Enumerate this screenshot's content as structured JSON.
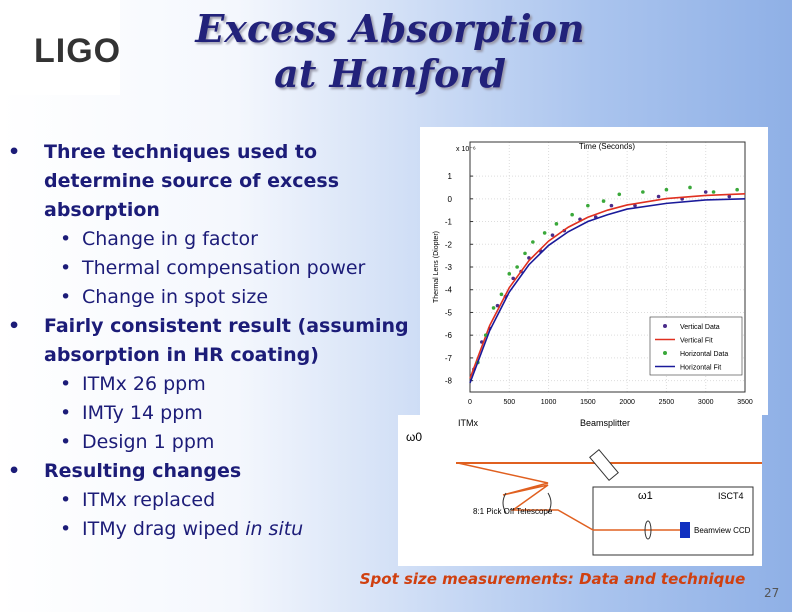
{
  "logo": "LIGO",
  "header": {
    "title": "Excess Absorption at Hanford"
  },
  "bullets": [
    {
      "level": 1,
      "text": "Three techniques used to determine source of excess absorption"
    },
    {
      "level": 2,
      "text": "Change in g factor"
    },
    {
      "level": 2,
      "text": "Thermal compensation power"
    },
    {
      "level": 2,
      "text": "Change in spot size"
    },
    {
      "level": 1,
      "text": "Fairly consistent result (assuming absorption in HR coating)"
    },
    {
      "level": 2,
      "text": "ITMx 26 ppm"
    },
    {
      "level": 2,
      "text": "IMTy 14 ppm"
    },
    {
      "level": 2,
      "text": "Design 1 ppm"
    },
    {
      "level": 1,
      "text": "Resulting changes"
    },
    {
      "level": 2,
      "text": "ITMx replaced"
    },
    {
      "level": 2,
      "text": "ITMy drag wiped",
      "emphasis": "in situ"
    }
  ],
  "chart_data": {
    "type": "scatter",
    "title": "Time (Seconds)",
    "y_label": "Thermal Lens (Diopter)",
    "y_scale_label": "x 10⁻⁶",
    "xlim": [
      0,
      3500
    ],
    "xticks": [
      0,
      500,
      1000,
      1500,
      2000,
      2500,
      3000,
      3500
    ],
    "ylim": [
      -8.5,
      2.5
    ],
    "yticks": [
      1,
      0,
      -1,
      -2,
      -3,
      -4,
      -5,
      -6,
      -7,
      -8
    ],
    "grid": true,
    "legend": "lower right",
    "series": [
      {
        "name": "Vertical Data",
        "color": "#4a2c8a",
        "style": "points",
        "x": [
          50,
          150,
          250,
          350,
          450,
          550,
          650,
          750,
          900,
          1050,
          1200,
          1400,
          1600,
          1800,
          2100,
          2400,
          2700,
          3000,
          3300
        ],
        "values": [
          -7.5,
          -6.3,
          -5.7,
          -4.7,
          -4.3,
          -3.5,
          -3.2,
          -2.6,
          -2.3,
          -1.6,
          -1.4,
          -0.9,
          -0.8,
          -0.3,
          -0.3,
          0.1,
          0.0,
          0.3,
          0.1
        ]
      },
      {
        "name": "Vertical Fit",
        "color": "#e03020",
        "style": "line",
        "x": [
          0,
          250,
          500,
          750,
          1000,
          1250,
          1500,
          1750,
          2000,
          2500,
          3000,
          3500
        ],
        "values": [
          -7.9,
          -5.58,
          -3.91,
          -2.72,
          -1.86,
          -1.25,
          -0.81,
          -0.5,
          -0.27,
          0.01,
          0.15,
          0.22
        ]
      },
      {
        "name": "Horizontal Data",
        "color": "#3aa83a",
        "style": "points",
        "x": [
          100,
          200,
          300,
          400,
          500,
          600,
          700,
          800,
          950,
          1100,
          1300,
          1500,
          1700,
          1900,
          2200,
          2500,
          2800,
          3100,
          3400
        ],
        "values": [
          -7.2,
          -6.0,
          -4.8,
          -4.2,
          -3.3,
          -3.0,
          -2.4,
          -1.9,
          -1.5,
          -1.1,
          -0.7,
          -0.3,
          -0.1,
          0.2,
          0.3,
          0.4,
          0.5,
          0.3,
          0.4
        ]
      },
      {
        "name": "Horizontal Fit",
        "color": "#1a1a9a",
        "style": "line",
        "x": [
          0,
          250,
          500,
          750,
          1000,
          1250,
          1500,
          1750,
          2000,
          2500,
          3000,
          3500
        ],
        "values": [
          -8.1,
          -5.8,
          -4.1,
          -2.9,
          -2.05,
          -1.45,
          -1.0,
          -0.7,
          -0.45,
          -0.2,
          -0.05,
          0.0
        ]
      }
    ]
  },
  "diagram": {
    "itm": "ITMx",
    "beamsplitter": "Beamsplitter",
    "waist0": "ω0",
    "waist1": "ω1",
    "table": "ISCT4",
    "telescope": "8:1 Pick Off Telescope",
    "camera": "Beamview CCD"
  },
  "caption": "Spot size measurements: Data and technique",
  "page_number": "27"
}
